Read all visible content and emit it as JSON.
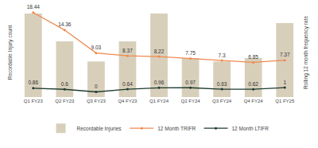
{
  "chart_data": {
    "type": "bar",
    "categories": [
      "Q1 FY23",
      "Q2 FY23",
      "Q3 FY23",
      "Q4 FY23",
      "Q1 FY24",
      "Q2 FY24",
      "Q3 FY24",
      "Q4 FY24",
      "Q1 FY25"
    ],
    "y_label": "Recordable Injury count",
    "y2_label": "Rolling 12 month frequency rate",
    "ylim": [
      0,
      16
    ],
    "yticks": [],
    "y2lim": [
      -1.2,
      19.5
    ],
    "y2ticks": [],
    "tick_labels": "x",
    "grid": false,
    "legend": "bottom",
    "series": [
      {
        "name": "Recordable Injuries",
        "type": "bar",
        "color": "#d8cfbb",
        "data_labels": false,
        "values": [
          15,
          10,
          6.4,
          10,
          15,
          7,
          6.4,
          7,
          13.3
        ]
      },
      {
        "name": "12 Month TRIFR",
        "type": "line",
        "axis": "y2",
        "color": "#ef8a4f",
        "marker": "circle",
        "line_style": "solid",
        "data_labels": true,
        "values": [
          18.44,
          14.36,
          9.03,
          8.37,
          8.22,
          7.75,
          7.3,
          6.85,
          7.37
        ]
      },
      {
        "name": "12 Month LTIFR",
        "type": "line",
        "axis": "y2",
        "color": "#1f3b2f",
        "marker": "circle",
        "line_style": "solid",
        "data_labels": true,
        "values": [
          0.86,
          0.6,
          0,
          0.64,
          0.96,
          0.97,
          0.63,
          0.62,
          1
        ]
      }
    ]
  }
}
